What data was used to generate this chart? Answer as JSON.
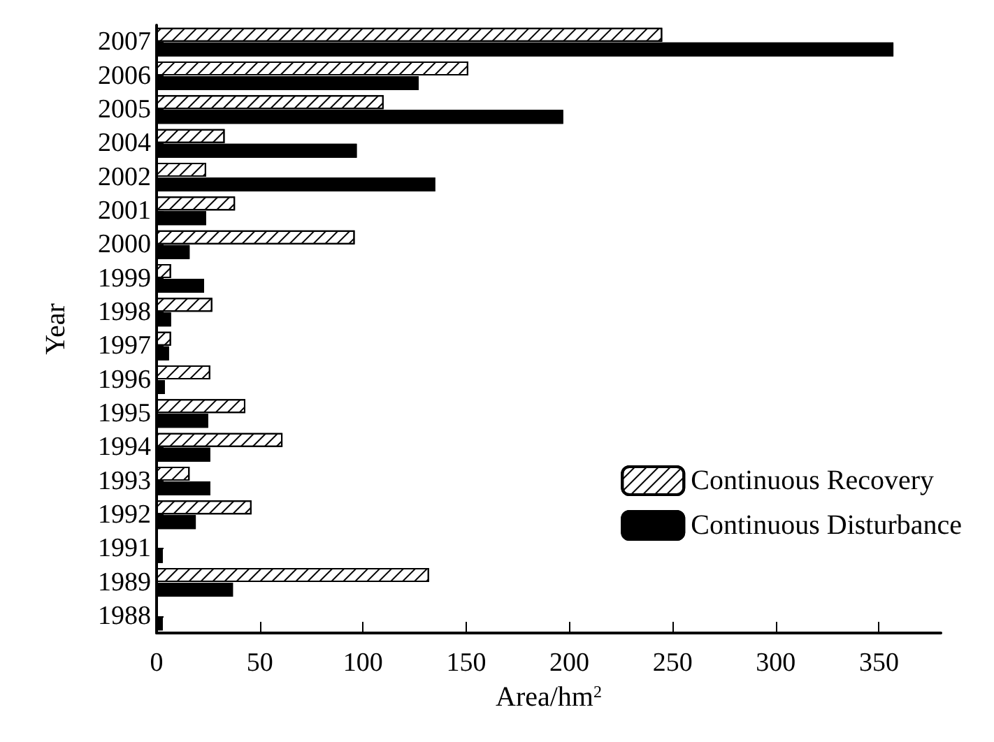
{
  "chart_data": {
    "type": "bar",
    "orientation": "horizontal",
    "xlabel": "Area/hm$^{2}$",
    "ylabel": "Year",
    "categories": [
      "2007",
      "2006",
      "2005",
      "2004",
      "2002",
      "2001",
      "2000",
      "1999",
      "1998",
      "1997",
      "1996",
      "1995",
      "1994",
      "1993",
      "1992",
      "1991",
      "1989",
      "1988"
    ],
    "series": [
      {
        "name": "Continuous Recovery",
        "color": "#ffffff",
        "values": [
          245,
          151,
          110,
          33,
          24,
          38,
          96,
          7,
          27,
          7,
          26,
          43,
          61,
          16,
          46,
          0,
          132,
          0
        ]
      },
      {
        "name": "Continuous Disturbance",
        "color": "#000000",
        "values": [
          357,
          127,
          197,
          97,
          135,
          24,
          16,
          23,
          7,
          6,
          4,
          25,
          26,
          26,
          19,
          3,
          37,
          3
        ]
      }
    ],
    "xlim": [
      0,
      380
    ],
    "xticks": [
      0,
      50,
      100,
      150,
      200,
      250,
      300,
      350
    ],
    "grid": false,
    "legend": "right"
  }
}
